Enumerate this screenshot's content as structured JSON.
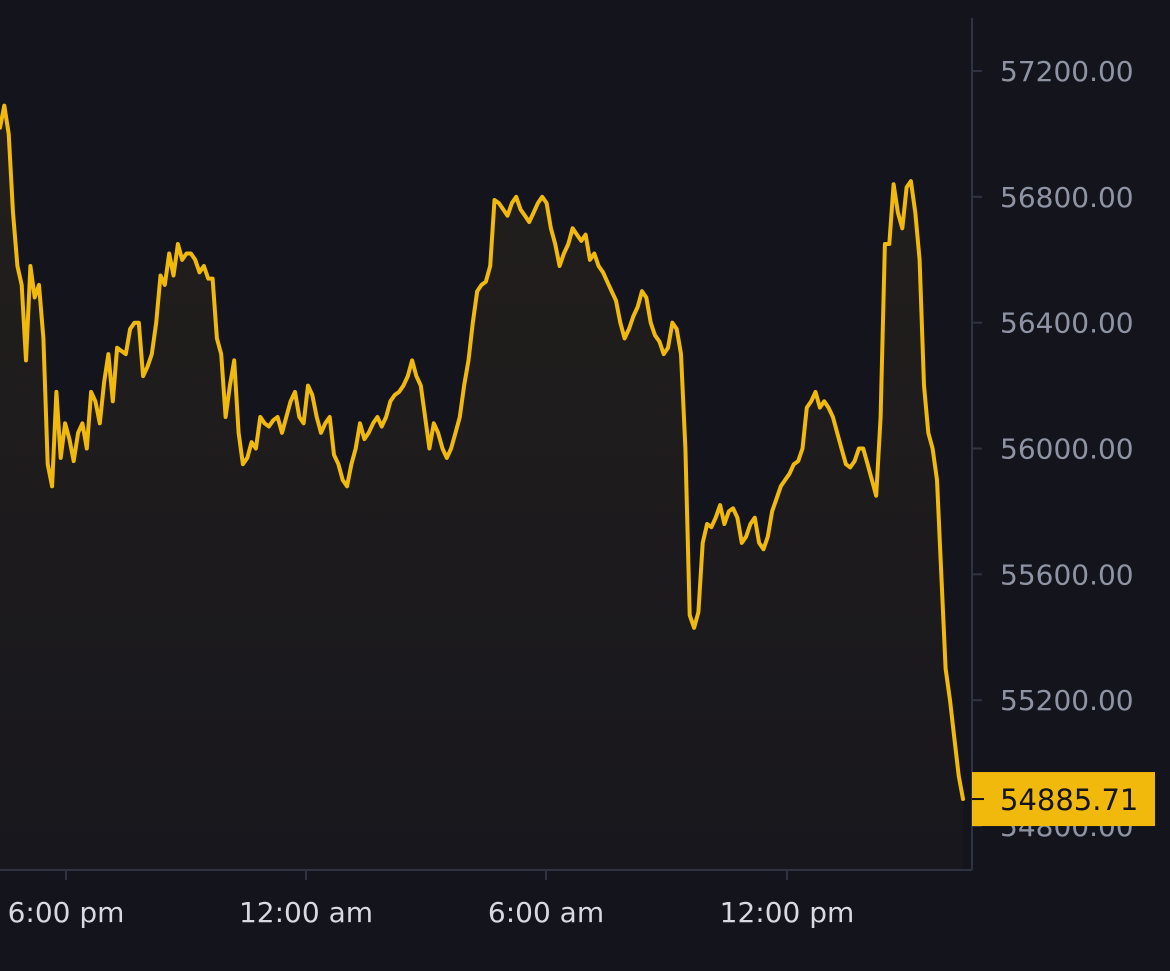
{
  "colors": {
    "background": "#14151c",
    "line": "#f0b90b",
    "area_top": "#221f1c",
    "area_bottom": "#18171d",
    "axis": "#2f3240",
    "tick_text": "#8e94a3",
    "x_tick_text": "#d7dae0",
    "price_tag_bg": "#f0b90b",
    "price_tag_text": "#14151c"
  },
  "current_price": {
    "label": "54885.71",
    "value": 54885.71
  },
  "chart_data": {
    "type": "line",
    "title": "",
    "xlabel": "",
    "ylabel": "",
    "grid": false,
    "ylim": [
      54800,
      57200
    ],
    "y_ticks": [
      57200,
      56800,
      56400,
      56000,
      55600,
      55200,
      54800
    ],
    "y_tick_labels": [
      "57200.00",
      "56800.00",
      "56400.00",
      "56000.00",
      "55600.00",
      "55200.00",
      "54800.00"
    ],
    "x_ticks": [
      "6:00 pm",
      "12:00 am",
      "6:00 am",
      "12:00 pm"
    ],
    "series": [
      {
        "values": [
          57020,
          57090,
          57000,
          56750,
          56580,
          56520,
          56280,
          56580,
          56480,
          56520,
          56350,
          55950,
          55880,
          56180,
          55970,
          56080,
          56030,
          55960,
          56050,
          56080,
          56000,
          56180,
          56150,
          56080,
          56210,
          56300,
          56150,
          56320,
          56310,
          56300,
          56380,
          56400,
          56400,
          56230,
          56260,
          56300,
          56400,
          56550,
          56520,
          56620,
          56550,
          56650,
          56600,
          56620,
          56620,
          56600,
          56560,
          56580,
          56540,
          56540,
          56350,
          56300,
          56100,
          56200,
          56280,
          56050,
          55950,
          55970,
          56020,
          56000,
          56100,
          56080,
          56070,
          56090,
          56100,
          56050,
          56100,
          56150,
          56180,
          56100,
          56080,
          56200,
          56170,
          56100,
          56050,
          56080,
          56100,
          55980,
          55950,
          55900,
          55880,
          55950,
          56000,
          56080,
          56030,
          56050,
          56080,
          56100,
          56070,
          56100,
          56150,
          56170,
          56180,
          56200,
          56230,
          56280,
          56230,
          56200,
          56100,
          56000,
          56080,
          56050,
          56000,
          55970,
          56000,
          56050,
          56100,
          56200,
          56280,
          56400,
          56500,
          56520,
          56530,
          56580,
          56790,
          56780,
          56760,
          56740,
          56780,
          56800,
          56760,
          56740,
          56720,
          56750,
          56780,
          56800,
          56780,
          56700,
          56650,
          56580,
          56620,
          56650,
          56700,
          56680,
          56660,
          56680,
          56600,
          56620,
          56580,
          56560,
          56530,
          56500,
          56470,
          56400,
          56350,
          56380,
          56420,
          56450,
          56500,
          56480,
          56400,
          56360,
          56340,
          56300,
          56320,
          56400,
          56380,
          56300,
          56000,
          55470,
          55430,
          55480,
          55700,
          55760,
          55750,
          55780,
          55820,
          55760,
          55800,
          55810,
          55780,
          55700,
          55720,
          55760,
          55780,
          55700,
          55680,
          55720,
          55800,
          55840,
          55880,
          55900,
          55920,
          55950,
          55960,
          56000,
          56130,
          56150,
          56180,
          56130,
          56150,
          56130,
          56100,
          56050,
          56000,
          55950,
          55940,
          55960,
          56000,
          56000,
          55950,
          55900,
          55850,
          56100,
          56650,
          56650,
          56840,
          56750,
          56700,
          56830,
          56850,
          56750,
          56600,
          56200,
          56050,
          56000,
          55900,
          55600,
          55300,
          55200,
          55080,
          54960,
          54885.71
        ]
      }
    ]
  }
}
